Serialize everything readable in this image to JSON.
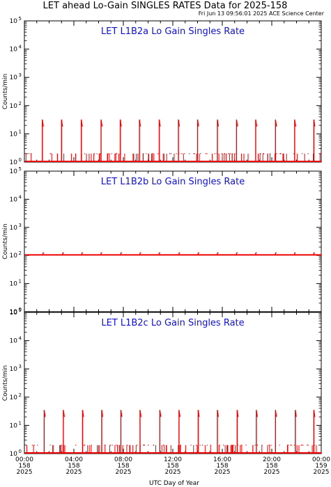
{
  "title": "LET ahead Lo-Gain SINGLES RATES Data for 2025-158",
  "timestamp": "Fri Jun 13 09:56:01 2025 ACE Science Center",
  "xlabel": "UTC Day of Year",
  "colors": {
    "data": "#ee0000",
    "panel_title": "#1111cc",
    "axes": "#000000"
  },
  "chart_data": [
    {
      "type": "line",
      "title": "LET L1B2a Lo Gain Singles Rate",
      "ylabel": "Counts/min",
      "yscale": "log",
      "ylim": [
        1,
        100000
      ],
      "ytick_labels": [
        "10^0",
        "10^1",
        "10^2",
        "10^3",
        "10^4",
        "10^5"
      ],
      "xlim_hours": [
        0,
        24
      ],
      "baseline": 1,
      "spike_hours": [
        1.45,
        3.0,
        4.6,
        6.2,
        7.75,
        9.3,
        10.9,
        12.45,
        14.0,
        15.6,
        17.15,
        18.7,
        20.3,
        21.85,
        23.4
      ],
      "spike_values": [
        32,
        32,
        32,
        32,
        32,
        32,
        32,
        32,
        32,
        32,
        32,
        32,
        32,
        32,
        32
      ],
      "scatter_level": 2
    },
    {
      "type": "line",
      "title": "LET L1B2b Lo Gain Singles Rate",
      "ylabel": "Counts/min",
      "yscale": "log",
      "ylim": [
        1,
        100000
      ],
      "ytick_labels": [
        "10^0",
        "10^1",
        "10^2",
        "10^3",
        "10^4",
        "10^5"
      ],
      "xlim_hours": [
        0,
        24
      ],
      "baseline": 105,
      "spike_hours": [
        1.5,
        3.1,
        4.65,
        6.2,
        7.8,
        9.35,
        10.9,
        12.5,
        14.05,
        15.6,
        17.15,
        18.7,
        20.3,
        21.85,
        23.4
      ],
      "spike_values": [
        125,
        125,
        125,
        125,
        125,
        125,
        125,
        125,
        125,
        125,
        125,
        125,
        125,
        125,
        125
      ],
      "scatter_level": 0
    },
    {
      "type": "line",
      "title": "LET L1B2c Lo Gain Singles Rate",
      "ylabel": "Counts/min",
      "yscale": "log",
      "ylim": [
        1,
        100000
      ],
      "ytick_labels": [
        "10^0",
        "10^1",
        "10^2",
        "10^3",
        "10^4",
        "10^5"
      ],
      "xlim_hours": [
        0,
        24
      ],
      "baseline": 1,
      "spike_hours": [
        1.6,
        3.15,
        4.7,
        6.25,
        7.8,
        9.35,
        10.95,
        12.5,
        14.05,
        15.6,
        17.2,
        18.75,
        20.3,
        21.9,
        23.4
      ],
      "spike_values": [
        35,
        35,
        35,
        35,
        35,
        35,
        35,
        35,
        35,
        35,
        35,
        35,
        35,
        35,
        35
      ],
      "scatter_level": 2
    }
  ],
  "xticks": [
    {
      "time": "00:00",
      "doy": "158",
      "year": "2025",
      "hour": 0
    },
    {
      "time": "04:00",
      "doy": "158",
      "year": "2025",
      "hour": 4
    },
    {
      "time": "08:00",
      "doy": "158",
      "year": "2025",
      "hour": 8
    },
    {
      "time": "12:00",
      "doy": "158",
      "year": "2025",
      "hour": 12
    },
    {
      "time": "16:00",
      "doy": "158",
      "year": "2025",
      "hour": 16
    },
    {
      "time": "20:00",
      "doy": "158",
      "year": "2025",
      "hour": 20
    },
    {
      "time": "00:00",
      "doy": "159",
      "year": "2025",
      "hour": 24
    }
  ]
}
